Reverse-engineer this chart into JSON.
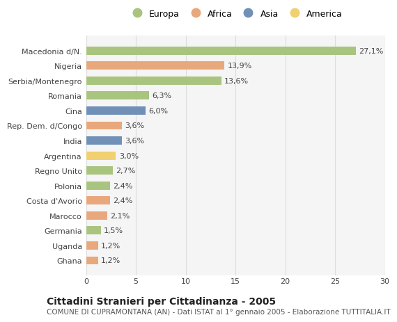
{
  "categories": [
    "Ghana",
    "Uganda",
    "Germania",
    "Marocco",
    "Costa d'Avorio",
    "Polonia",
    "Regno Unito",
    "Argentina",
    "India",
    "Rep. Dem. d/Congo",
    "Cina",
    "Romania",
    "Serbia/Montenegro",
    "Nigeria",
    "Macedonia d/N."
  ],
  "values": [
    1.2,
    1.2,
    1.5,
    2.1,
    2.4,
    2.4,
    2.7,
    3.0,
    3.6,
    3.6,
    6.0,
    6.3,
    13.6,
    13.9,
    27.1
  ],
  "colors": [
    "#e8a87c",
    "#e8a87c",
    "#a8c47e",
    "#e8a87c",
    "#e8a87c",
    "#a8c47e",
    "#a8c47e",
    "#f0d070",
    "#7090b8",
    "#e8a87c",
    "#7090b8",
    "#a8c47e",
    "#a8c47e",
    "#e8a87c",
    "#a8c47e"
  ],
  "labels": [
    "1,2%",
    "1,2%",
    "1,5%",
    "2,1%",
    "2,4%",
    "2,4%",
    "2,7%",
    "3,0%",
    "3,6%",
    "3,6%",
    "6,0%",
    "6,3%",
    "13,6%",
    "13,9%",
    "27,1%"
  ],
  "legend": [
    {
      "label": "Europa",
      "color": "#a8c47e"
    },
    {
      "label": "Africa",
      "color": "#e8a87c"
    },
    {
      "label": "Asia",
      "color": "#7090b8"
    },
    {
      "label": "America",
      "color": "#f0d070"
    }
  ],
  "title": "Cittadini Stranieri per Cittadinanza - 2005",
  "subtitle": "COMUNE DI CUPRAMONTANA (AN) - Dati ISTAT al 1° gennaio 2005 - Elaborazione TUTTITALIA.IT",
  "xlim": [
    0,
    30
  ],
  "xticks": [
    0,
    5,
    10,
    15,
    20,
    25,
    30
  ],
  "background_color": "#ffffff",
  "plot_bg_color": "#f5f5f5",
  "grid_color": "#dddddd",
  "bar_height": 0.55,
  "text_color": "#444444",
  "label_fontsize": 8.0,
  "tick_fontsize": 8.0,
  "title_fontsize": 10,
  "subtitle_fontsize": 7.5
}
